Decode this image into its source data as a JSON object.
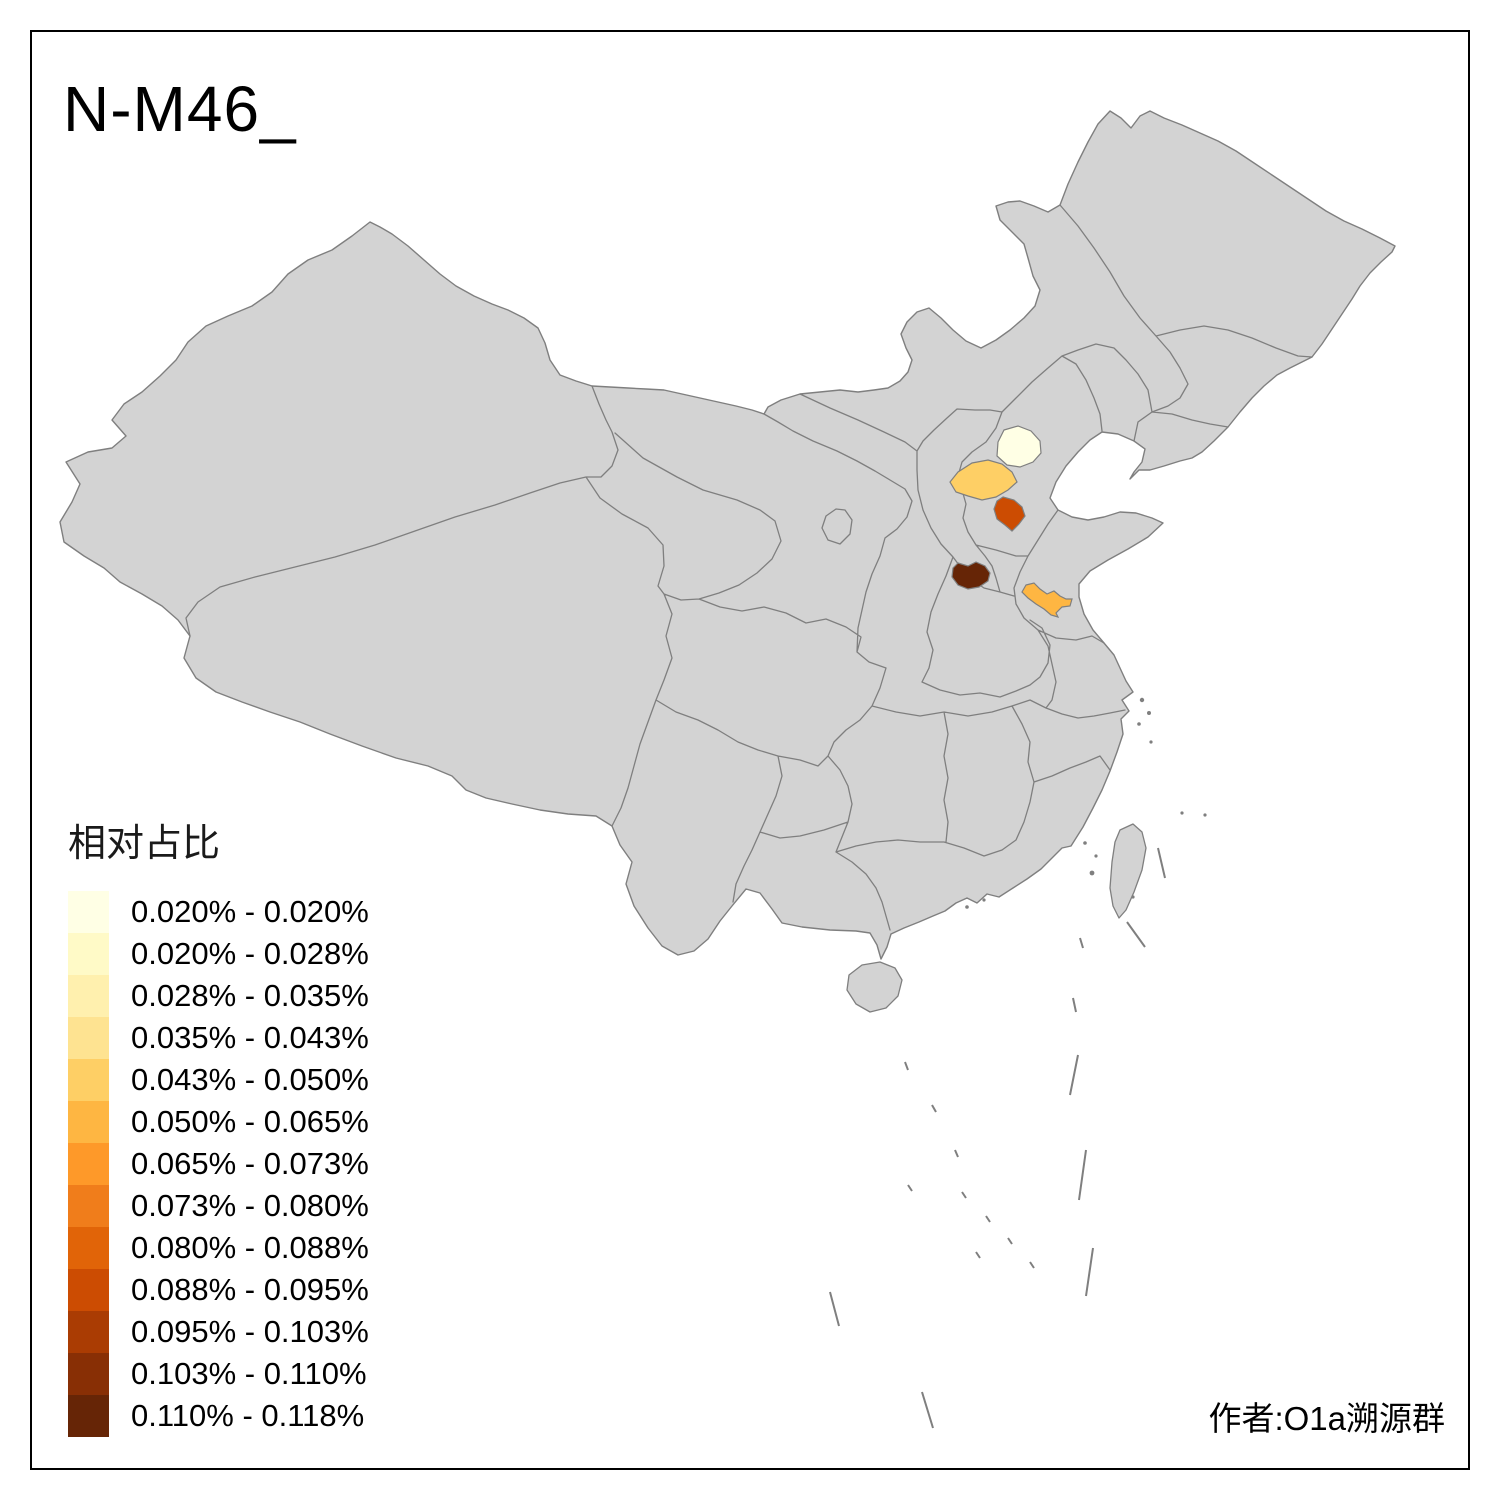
{
  "title": "N-M46_",
  "caption": "作者:O1a溯源群",
  "legend": {
    "title": "相对占比",
    "items": [
      {
        "range": "0.020% - 0.020%",
        "color": "#ffffe5"
      },
      {
        "range": "0.020% - 0.028%",
        "color": "#fffac7"
      },
      {
        "range": "0.028% - 0.035%",
        "color": "#fff0ae"
      },
      {
        "range": "0.035% - 0.043%",
        "color": "#fee391"
      },
      {
        "range": "0.043% - 0.050%",
        "color": "#fecf65"
      },
      {
        "range": "0.050% - 0.065%",
        "color": "#feb642"
      },
      {
        "range": "0.065% - 0.073%",
        "color": "#fe9929"
      },
      {
        "range": "0.073% - 0.080%",
        "color": "#f07d1b"
      },
      {
        "range": "0.080% - 0.088%",
        "color": "#e16408"
      },
      {
        "range": "0.088% - 0.095%",
        "color": "#cc4c02"
      },
      {
        "range": "0.095% - 0.103%",
        "color": "#aa3c03"
      },
      {
        "range": "0.103% - 0.110%",
        "color": "#882f05"
      },
      {
        "range": "0.110% - 0.118%",
        "color": "#662506"
      }
    ]
  },
  "map": {
    "base_fill": "#d3d3d3",
    "border_color": "#7f7f7f",
    "sea_color": "#ffffff",
    "frame_color": "#000000",
    "highlighted_regions": [
      {
        "id": "highlight-1",
        "legend_class": 1,
        "value_range": "0.020% - 0.020%",
        "color": "#ffffe5"
      },
      {
        "id": "highlight-2",
        "legend_class": 5,
        "value_range": "0.043% - 0.050%",
        "color": "#fecf65"
      },
      {
        "id": "highlight-3",
        "legend_class": 10,
        "value_range": "0.088% - 0.095%",
        "color": "#cc4c02"
      },
      {
        "id": "highlight-4",
        "legend_class": 13,
        "value_range": "0.110% - 0.118%",
        "color": "#662506"
      },
      {
        "id": "highlight-5",
        "legend_class": 6,
        "value_range": "0.050% - 0.065%",
        "color": "#feb642"
      }
    ]
  },
  "chart_data": {
    "type": "heatmap",
    "title": "N-M46_",
    "legend_title": "相对占比",
    "classes": [
      "0.020% - 0.020%",
      "0.020% - 0.028%",
      "0.028% - 0.035%",
      "0.035% - 0.043%",
      "0.043% - 0.050%",
      "0.050% - 0.065%",
      "0.065% - 0.073%",
      "0.073% - 0.080%",
      "0.080% - 0.088%",
      "0.088% - 0.095%",
      "0.095% - 0.103%",
      "0.103% - 0.110%",
      "0.110% - 0.118%"
    ],
    "palette": [
      "#ffffe5",
      "#fffac7",
      "#fff0ae",
      "#fee391",
      "#fecf65",
      "#feb642",
      "#fe9929",
      "#f07d1b",
      "#e16408",
      "#cc4c02",
      "#aa3c03",
      "#882f05",
      "#662506"
    ],
    "highlighted_values": [
      {
        "region": "highlight-1",
        "value_range": "0.020% - 0.020%"
      },
      {
        "region": "highlight-2",
        "value_range": "0.043% - 0.050%"
      },
      {
        "region": "highlight-3",
        "value_range": "0.088% - 0.095%"
      },
      {
        "region": "highlight-4",
        "value_range": "0.110% - 0.118%"
      },
      {
        "region": "highlight-5",
        "value_range": "0.050% - 0.065%"
      }
    ],
    "legend_position": "bottom-left",
    "annotation": "作者:O1a溯源群"
  }
}
